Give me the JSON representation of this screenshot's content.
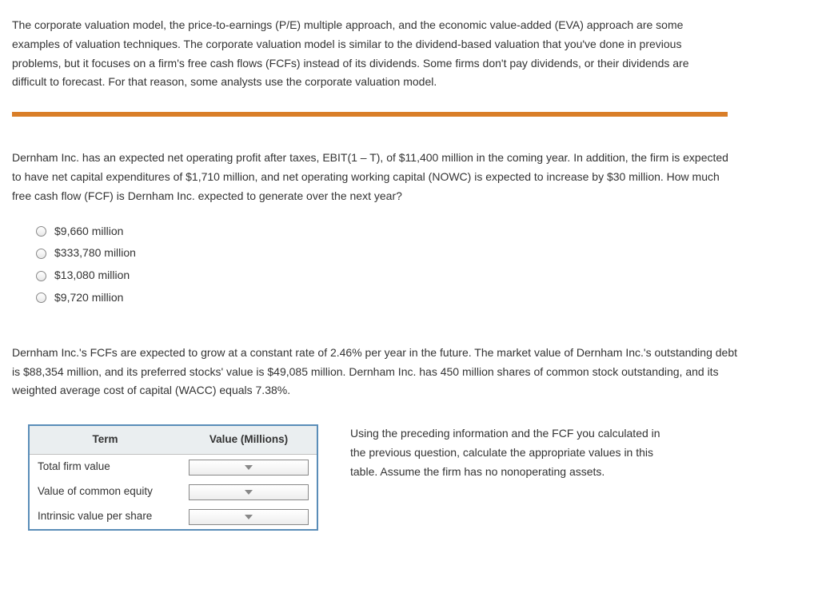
{
  "intro": "The corporate valuation model, the price-to-earnings (P/E) multiple approach, and the economic value-added (EVA) approach are some examples of valuation techniques. The corporate valuation model is similar to the dividend-based valuation that you've done in previous problems, but it focuses on a firm's free cash flows (FCFs) instead of its dividends. Some firms don't pay dividends, or their dividends are difficult to forecast. For that reason, some analysts use the corporate valuation model.",
  "divider_color": "#d97e28",
  "question1": "Dernham Inc. has an expected net operating profit after taxes, EBIT(1 – T), of $11,400 million in the coming year. In addition, the firm is expected to have net capital expenditures of $1,710 million, and net operating working capital (NOWC) is expected to increase by $30 million. How much free cash flow (FCF) is Dernham Inc. expected to generate over the next year?",
  "options": [
    "$9,660 million",
    "$333,780 million",
    "$13,080 million",
    "$9,720 million"
  ],
  "context2": "Dernham Inc.'s FCFs are expected to grow at a constant rate of 2.46% per year in the future. The market value of Dernham Inc.'s outstanding debt is $88,354 million, and its preferred stocks' value is $49,085 million. Dernham Inc. has 450 million shares of common stock outstanding, and its weighted average cost of capital (WACC) equals 7.38%.",
  "table": {
    "header_term": "Term",
    "header_value": "Value (Millions)",
    "rows": [
      {
        "term": "Total firm value"
      },
      {
        "term": "Value of common equity"
      },
      {
        "term": "Intrinsic value per share"
      }
    ]
  },
  "instructions": "Using the preceding information and the FCF you calculated in the previous question, calculate the appropriate values in this table. Assume the firm has no nonoperating assets.",
  "colors": {
    "text": "#333333",
    "table_border": "#5a8db8",
    "table_header_bg": "#eaeef0"
  }
}
